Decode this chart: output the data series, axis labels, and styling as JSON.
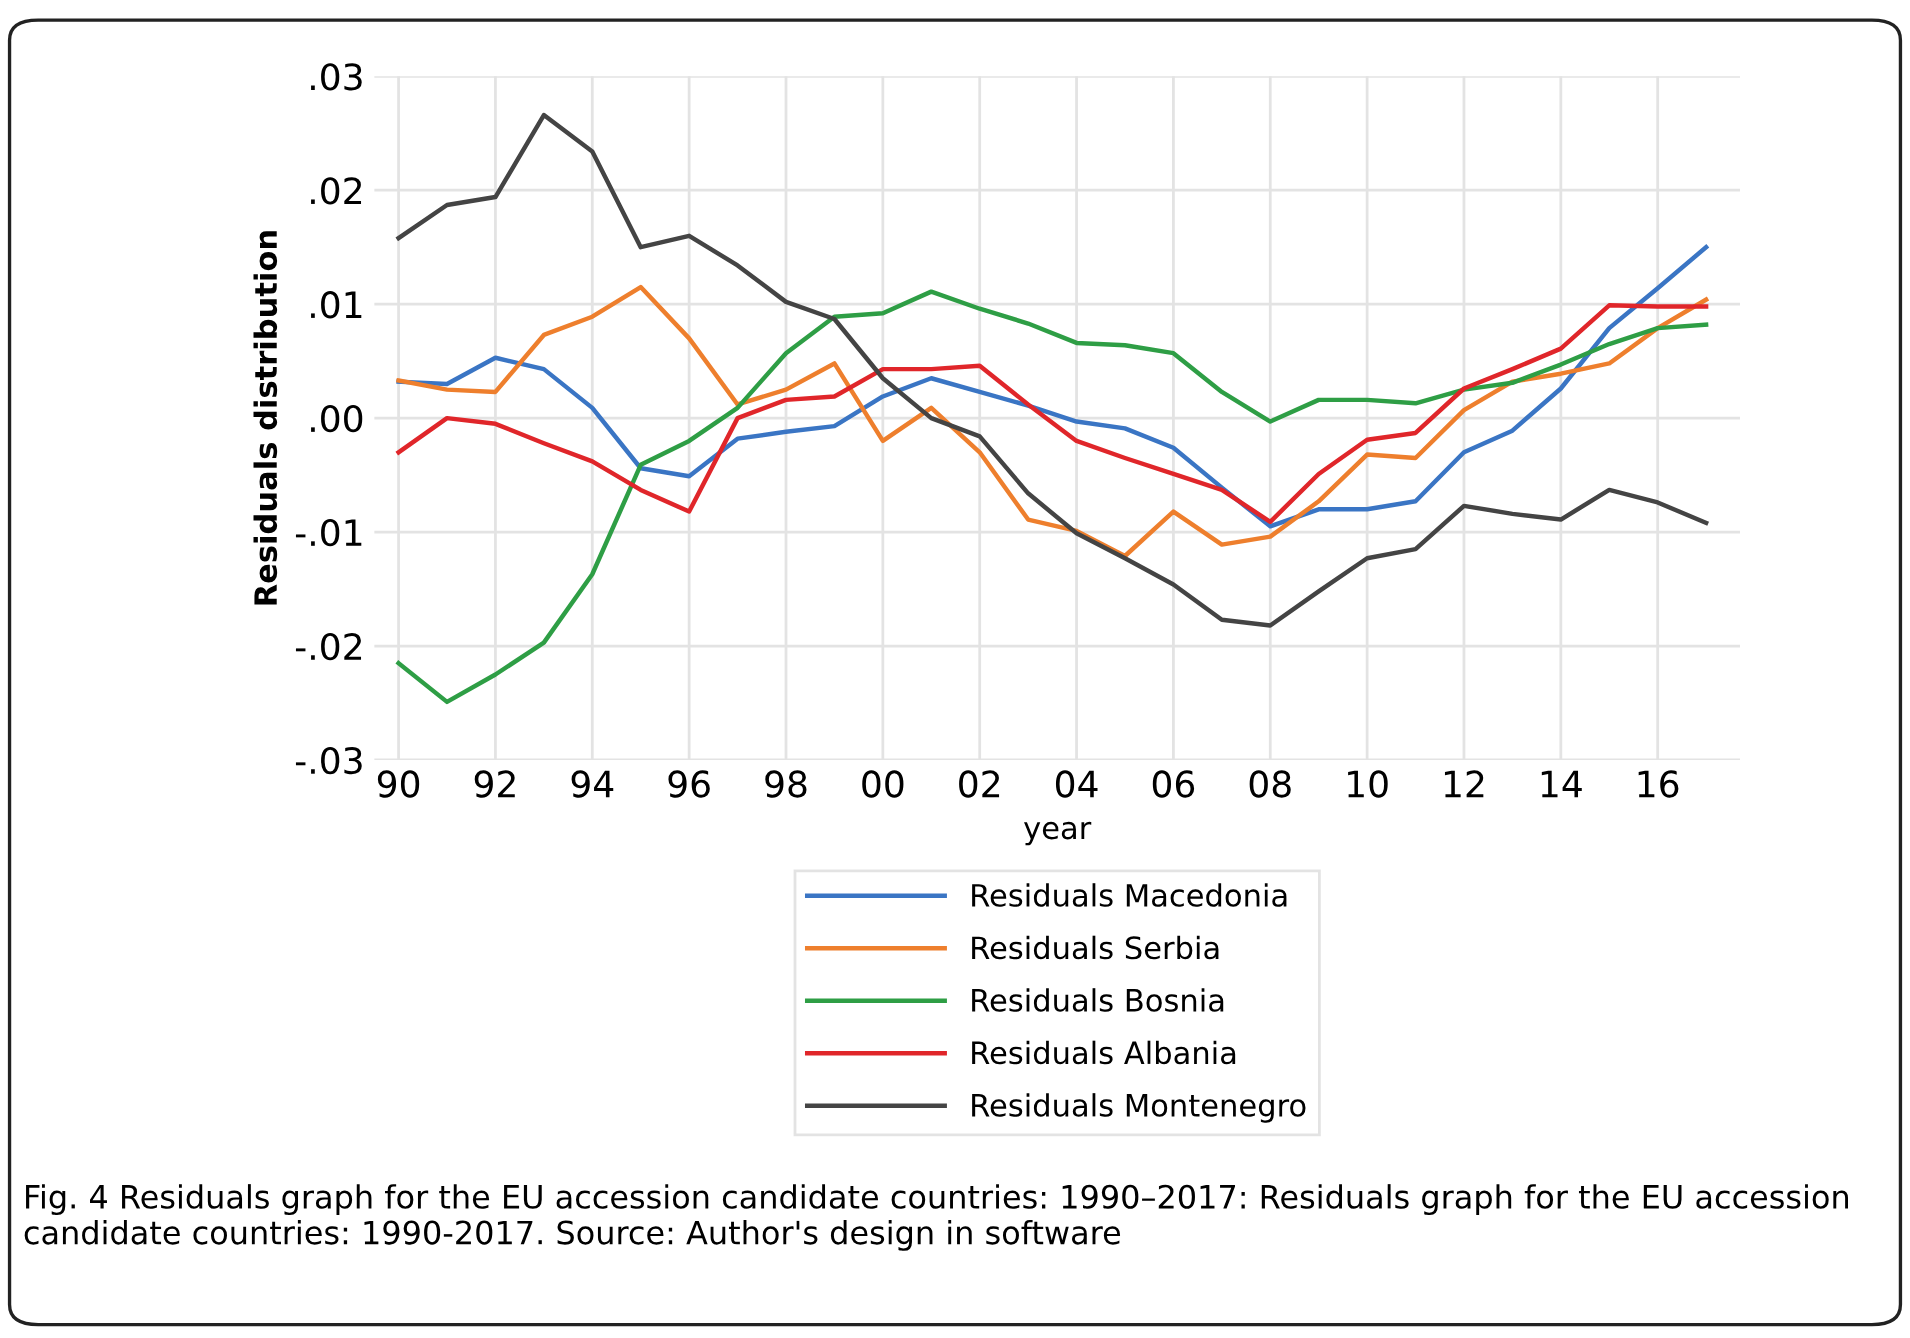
{
  "chart_data": {
    "type": "line",
    "xlabel": "year",
    "ylabel": "Residuals distribution",
    "x": [
      1990,
      1991,
      1992,
      1993,
      1994,
      1995,
      1996,
      1997,
      1998,
      1999,
      2000,
      2001,
      2002,
      2003,
      2004,
      2005,
      2006,
      2007,
      2008,
      2009,
      2010,
      2011,
      2012,
      2013,
      2014,
      2015,
      2016,
      2017
    ],
    "series": [
      {
        "name": "Residuals Macedonia",
        "color": "#3a75c4",
        "values": [
          0.0032,
          0.003,
          0.0053,
          0.0043,
          0.0009,
          -0.0044,
          -0.0051,
          -0.0018,
          -0.0012,
          -0.0007,
          0.0019,
          0.0035,
          0.0023,
          0.0011,
          -0.0003,
          -0.0009,
          -0.0026,
          -0.0061,
          -0.0095,
          -0.008,
          -0.008,
          -0.0073,
          -0.003,
          -0.0011,
          0.0026,
          0.0079,
          0.0114,
          0.015
        ]
      },
      {
        "name": "Residuals Serbia",
        "color": "#ee7f2d",
        "values": [
          0.0033,
          0.0025,
          0.0023,
          0.0073,
          0.0089,
          0.0115,
          0.007,
          0.0012,
          0.0025,
          0.0048,
          -0.002,
          0.0009,
          -0.003,
          -0.0089,
          -0.0099,
          -0.0121,
          -0.0082,
          -0.0111,
          -0.0104,
          -0.0073,
          -0.0032,
          -0.0035,
          0.0007,
          0.0032,
          0.0039,
          0.0048,
          0.0079,
          0.0104
        ]
      },
      {
        "name": "Residuals Bosnia",
        "color": "#2e9e45",
        "values": [
          -0.0215,
          -0.0249,
          -0.0225,
          -0.0197,
          -0.0137,
          -0.0041,
          -0.002,
          0.0009,
          0.0057,
          0.0089,
          0.0092,
          0.0111,
          0.0096,
          0.0083,
          0.0066,
          0.0064,
          0.0057,
          0.0023,
          -0.0003,
          0.0016,
          0.0016,
          0.0013,
          0.0025,
          0.0031,
          0.0047,
          0.0065,
          0.0079,
          0.0082
        ]
      },
      {
        "name": "Residuals Albania",
        "color": "#e0262a",
        "values": [
          -0.003,
          0.0,
          -0.0005,
          -0.0022,
          -0.0038,
          -0.0063,
          -0.0082,
          0.0,
          0.0016,
          0.0019,
          0.0043,
          0.0043,
          0.0046,
          0.0012,
          -0.002,
          -0.0035,
          -0.0049,
          -0.0063,
          -0.0091,
          -0.0049,
          -0.0019,
          -0.0013,
          0.0026,
          0.0043,
          0.0061,
          0.0099,
          0.0098,
          0.0098
        ]
      },
      {
        "name": "Residuals Montenegro",
        "color": "#444444",
        "values": [
          0.0158,
          0.0187,
          0.0194,
          0.0266,
          0.0234,
          0.015,
          0.016,
          0.0134,
          0.0102,
          0.0087,
          0.0035,
          0.0,
          -0.0016,
          -0.0066,
          -0.0101,
          -0.0123,
          -0.0146,
          -0.0177,
          -0.0182,
          -0.0152,
          -0.0123,
          -0.0115,
          -0.0077,
          -0.0084,
          -0.0089,
          -0.0063,
          -0.0074,
          -0.0092
        ]
      }
    ],
    "xlim": [
      1989.5,
      2017.7
    ],
    "xticks": [
      {
        "value": 1990,
        "label": "90"
      },
      {
        "value": 1992,
        "label": "92"
      },
      {
        "value": 1994,
        "label": "94"
      },
      {
        "value": 1996,
        "label": "96"
      },
      {
        "value": 1998,
        "label": "98"
      },
      {
        "value": 2000,
        "label": "00"
      },
      {
        "value": 2002,
        "label": "02"
      },
      {
        "value": 2004,
        "label": "04"
      },
      {
        "value": 2006,
        "label": "06"
      },
      {
        "value": 2008,
        "label": "08"
      },
      {
        "value": 2010,
        "label": "10"
      },
      {
        "value": 2012,
        "label": "12"
      },
      {
        "value": 2014,
        "label": "14"
      },
      {
        "value": 2016,
        "label": "16"
      }
    ],
    "ylim": [
      -0.03,
      0.03
    ],
    "yticks": [
      {
        "value": -0.03,
        "label": "-.03"
      },
      {
        "value": -0.02,
        "label": "-.02"
      },
      {
        "value": -0.01,
        "label": "-.01"
      },
      {
        "value": 0,
        "label": ".00"
      },
      {
        "value": 0.01,
        "label": ".01"
      },
      {
        "value": 0.02,
        "label": ".02"
      },
      {
        "value": 0.03,
        "label": ".03"
      }
    ],
    "grid": true,
    "legend": "bottom",
    "marker": "none",
    "line_style": "solid",
    "annotations": [
      "Fig. 4 Residuals graph for the EU accession candidate countries: 1990–2017: Residuals graph for the EU accession candidate countries: 1990-2017. Source: Author's design in software"
    ]
  }
}
